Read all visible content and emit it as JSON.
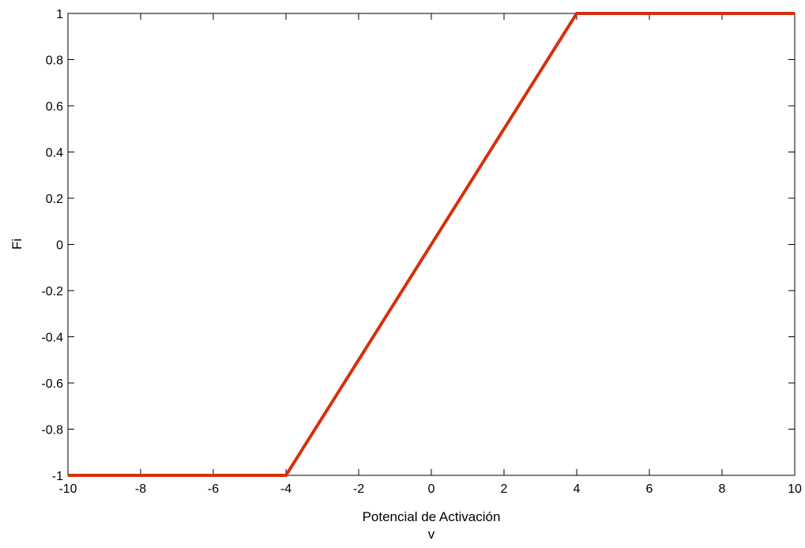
{
  "chart_data": {
    "type": "line",
    "title": "",
    "xlabel_lines": [
      "Potencial de Activación",
      "v"
    ],
    "ylabel": "Fi",
    "xlim": [
      -10,
      10
    ],
    "ylim": [
      -1,
      1
    ],
    "xticks": [
      -10,
      -8,
      -6,
      -4,
      -2,
      0,
      2,
      4,
      6,
      8,
      10
    ],
    "yticks": [
      1,
      0.8,
      0.6,
      0.4,
      0.2,
      0,
      -0.2,
      -0.4,
      -0.6,
      -0.8,
      -1
    ],
    "grid": false,
    "legend": "none",
    "series": [
      {
        "color": "#d62f0c",
        "x": [
          -10,
          -4,
          4,
          10
        ],
        "y": [
          -1,
          -1,
          1,
          1
        ]
      }
    ]
  }
}
